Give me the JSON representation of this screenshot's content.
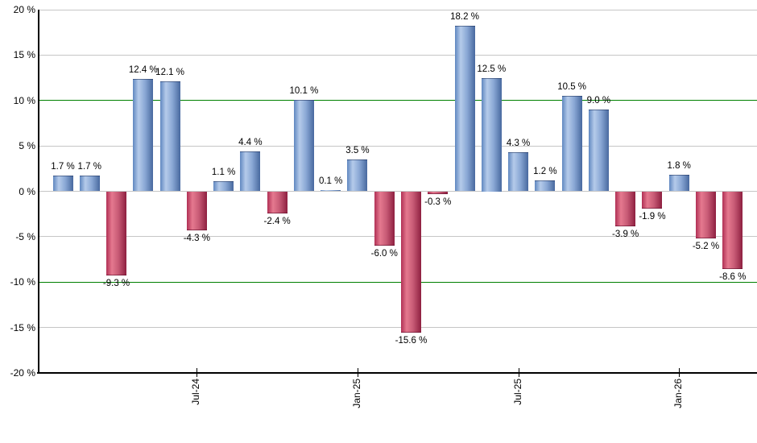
{
  "chart_data": {
    "type": "bar",
    "title": "",
    "description": "Monthly percentage returns bar chart; blue bars are positive months, red bars are negative months",
    "unit": "%",
    "y_axis": {
      "min": -20,
      "max": 20,
      "tick_step": 5,
      "tick_labels": [
        "20 %",
        "15 %",
        "10 %",
        "5 %",
        "0 %",
        "-5 %",
        "-10 %",
        "-15 %",
        "-20 %"
      ],
      "tick_values": [
        20,
        15,
        10,
        5,
        0,
        -5,
        -10,
        -15,
        -20
      ],
      "gridline_values": [
        20,
        15,
        10,
        5,
        0,
        -5,
        -10,
        -15
      ],
      "highlight_line_values": [
        10,
        -10
      ]
    },
    "x_ticks": [
      {
        "label": "Jul-24",
        "bar_index": 5
      },
      {
        "label": "Jan-25",
        "bar_index": 11
      },
      {
        "label": "Jul-25",
        "bar_index": 17
      },
      {
        "label": "Jan-26",
        "bar_index": 23
      }
    ],
    "bars": [
      {
        "value": 1.7,
        "label": "1.7 %"
      },
      {
        "value": 1.7,
        "label": "1.7 %"
      },
      {
        "value": -9.3,
        "label": "-9.3 %"
      },
      {
        "value": 12.4,
        "label": "12.4 %"
      },
      {
        "value": 12.1,
        "label": "12.1 %"
      },
      {
        "value": -4.3,
        "label": "-4.3 %"
      },
      {
        "value": 1.1,
        "label": "1.1 %"
      },
      {
        "value": 4.4,
        "label": "4.4 %"
      },
      {
        "value": -2.4,
        "label": "-2.4 %"
      },
      {
        "value": 10.1,
        "label": "10.1 %"
      },
      {
        "value": 0.1,
        "label": "0.1 %"
      },
      {
        "value": 3.5,
        "label": "3.5 %"
      },
      {
        "value": -6.0,
        "label": "-6.0 %"
      },
      {
        "value": -15.6,
        "label": "-15.6 %"
      },
      {
        "value": -0.3,
        "label": "-0.3 %"
      },
      {
        "value": 18.2,
        "label": "18.2 %"
      },
      {
        "value": 12.5,
        "label": "12.5 %"
      },
      {
        "value": 4.3,
        "label": "4.3 %"
      },
      {
        "value": 1.2,
        "label": "1.2 %"
      },
      {
        "value": 10.5,
        "label": "10.5 %"
      },
      {
        "value": 9.0,
        "label": "9.0 %"
      },
      {
        "value": -3.9,
        "label": "-3.9 %"
      },
      {
        "value": -1.9,
        "label": "-1.9 %"
      },
      {
        "value": 1.8,
        "label": "1.8 %"
      },
      {
        "value": -5.2,
        "label": "-5.2 %"
      },
      {
        "value": -8.6,
        "label": "-8.6 %"
      }
    ],
    "colors": {
      "positive_bar": "#7b9cce",
      "negative_bar": "#c04a68",
      "gridline": "#c6c6c6",
      "highlight_line": "#008000",
      "axis": "#000000",
      "text": "#000000",
      "background": "#ffffff"
    },
    "legend": null
  }
}
